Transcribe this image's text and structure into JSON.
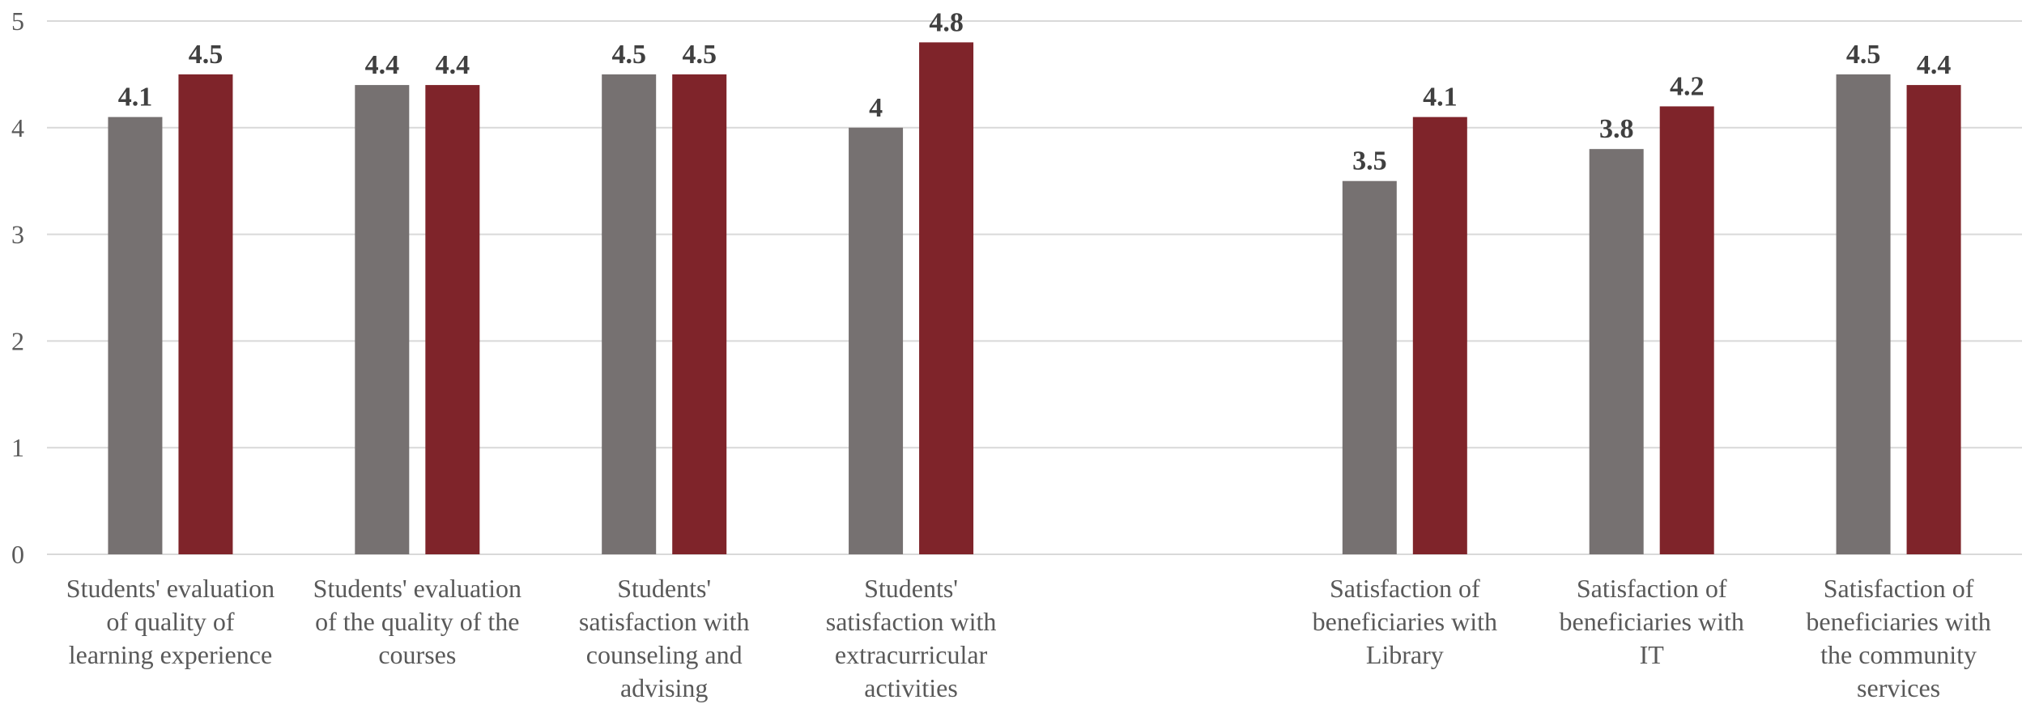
{
  "chart_data": {
    "type": "bar",
    "title": "",
    "xlabel": "",
    "ylabel": "",
    "ylim": [
      0,
      5
    ],
    "yticks": [
      0,
      1,
      2,
      3,
      4,
      5
    ],
    "grid": true,
    "legend": "none",
    "categories": [
      [
        "Students' evaluation",
        "of quality of",
        "learning experience"
      ],
      [
        "Students' evaluation",
        "of the quality of the",
        "courses"
      ],
      [
        "Students'",
        "satisfaction with",
        "counseling and",
        "advising"
      ],
      [
        "Students'",
        "satisfaction with",
        "extracurricular",
        "activities"
      ],
      [],
      [
        "Satisfaction of",
        "beneficiaries with",
        "Library"
      ],
      [
        "Satisfaction of",
        "beneficiaries with",
        "IT"
      ],
      [
        "Satisfaction of",
        "beneficiaries with",
        "the community",
        "services"
      ]
    ],
    "series": [
      {
        "color": "#767171",
        "values": [
          4.1,
          4.4,
          4.5,
          4,
          null,
          3.5,
          3.8,
          4.5
        ]
      },
      {
        "color": "#7f242a",
        "values": [
          4.5,
          4.4,
          4.5,
          4.8,
          null,
          4.1,
          4.2,
          4.4
        ]
      }
    ]
  }
}
